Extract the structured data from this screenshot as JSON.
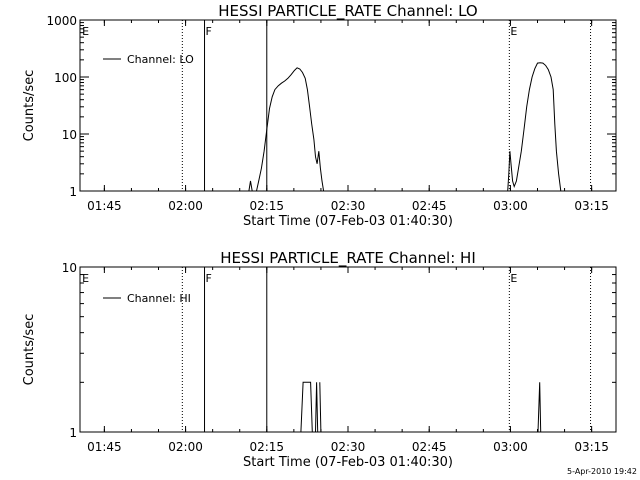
{
  "chart_data": [
    {
      "type": "line",
      "title": "HESSI PARTICLE_RATE Channel: LO",
      "xlabel": "Start Time (07-Feb-03 01:40:30)",
      "ylabel": "Counts/sec",
      "yscale": "log",
      "ylim": [
        1,
        1000
      ],
      "y_ticks": [
        {
          "value": 1,
          "label": "1"
        },
        {
          "value": 10,
          "label": "10"
        },
        {
          "value": 100,
          "label": "100"
        },
        {
          "value": 1000,
          "label": "1000"
        }
      ],
      "x_unit": "minutes since 01:40:30",
      "xlim": [
        0,
        99
      ],
      "x_ticks": [
        {
          "value": 4.5,
          "label": "01:45"
        },
        {
          "value": 19.5,
          "label": "02:00"
        },
        {
          "value": 34.5,
          "label": "02:15"
        },
        {
          "value": 49.5,
          "label": "02:30"
        },
        {
          "value": 64.5,
          "label": "02:45"
        },
        {
          "value": 79.5,
          "label": "03:00"
        },
        {
          "value": 94.5,
          "label": "03:15"
        }
      ],
      "legend": {
        "entries": [
          "Channel: LO"
        ],
        "position": "top-left"
      },
      "markers": [
        {
          "x": 0.2,
          "label": "E",
          "style": "none"
        },
        {
          "x": 18.9,
          "label": "",
          "style": "dotted"
        },
        {
          "x": 23.0,
          "label": "F",
          "style": "solid"
        },
        {
          "x": 34.5,
          "label": "",
          "style": "solid"
        },
        {
          "x": 79.3,
          "label": "E",
          "style": "dotted"
        },
        {
          "x": 94.3,
          "label": "",
          "style": "dotted"
        }
      ],
      "series": [
        {
          "name": "Channel: LO",
          "segments": [
            [
              [
                31.2,
                1
              ],
              [
                31.5,
                1.5
              ],
              [
                31.8,
                1
              ]
            ],
            [
              [
                32.6,
                1
              ],
              [
                33.0,
                1.5
              ],
              [
                33.5,
                2.5
              ],
              [
                34.0,
                5
              ],
              [
                34.5,
                12
              ],
              [
                35.0,
                28
              ],
              [
                35.5,
                45
              ],
              [
                36.0,
                60
              ],
              [
                36.6,
                70
              ],
              [
                37.2,
                78
              ],
              [
                37.8,
                85
              ],
              [
                38.4,
                95
              ],
              [
                39.0,
                110
              ],
              [
                39.6,
                130
              ],
              [
                40.1,
                145
              ],
              [
                40.6,
                138
              ],
              [
                41.1,
                120
              ],
              [
                41.6,
                95
              ],
              [
                42.0,
                60
              ],
              [
                42.4,
                30
              ],
              [
                42.8,
                15
              ],
              [
                43.2,
                8
              ],
              [
                43.5,
                4
              ],
              [
                43.8,
                3
              ],
              [
                44.1,
                5
              ],
              [
                44.4,
                2.5
              ],
              [
                44.7,
                1.5
              ],
              [
                45.0,
                1
              ]
            ],
            [
              [
                79.0,
                1
              ],
              [
                79.2,
                2
              ],
              [
                79.4,
                5
              ],
              [
                79.6,
                3
              ],
              [
                79.9,
                1.5
              ],
              [
                80.2,
                1.2
              ],
              [
                80.6,
                1.5
              ],
              [
                81.0,
                2.5
              ],
              [
                81.5,
                5
              ],
              [
                82.0,
                12
              ],
              [
                82.5,
                30
              ],
              [
                83.0,
                60
              ],
              [
                83.5,
                100
              ],
              [
                84.0,
                140
              ],
              [
                84.5,
                175
              ],
              [
                85.0,
                178
              ],
              [
                85.5,
                175
              ],
              [
                86.0,
                160
              ],
              [
                86.5,
                135
              ],
              [
                87.0,
                100
              ],
              [
                87.4,
                60
              ],
              [
                87.7,
                15
              ],
              [
                88.0,
                5
              ],
              [
                88.4,
                2
              ],
              [
                88.8,
                1
              ]
            ]
          ]
        }
      ]
    },
    {
      "type": "line",
      "title": "HESSI PARTICLE_RATE Channel: HI",
      "xlabel": "Start Time (07-Feb-03 01:40:30)",
      "ylabel": "Counts/sec",
      "yscale": "log",
      "ylim": [
        1,
        10
      ],
      "y_ticks": [
        {
          "value": 1,
          "label": "1"
        },
        {
          "value": 10,
          "label": "10"
        }
      ],
      "x_unit": "minutes since 01:40:30",
      "xlim": [
        0,
        99
      ],
      "x_ticks": [
        {
          "value": 4.5,
          "label": "01:45"
        },
        {
          "value": 19.5,
          "label": "02:00"
        },
        {
          "value": 34.5,
          "label": "02:15"
        },
        {
          "value": 49.5,
          "label": "02:30"
        },
        {
          "value": 64.5,
          "label": "02:45"
        },
        {
          "value": 79.5,
          "label": "03:00"
        },
        {
          "value": 94.5,
          "label": "03:15"
        }
      ],
      "legend": {
        "entries": [
          "Channel: HI"
        ],
        "position": "top-left"
      },
      "markers": [
        {
          "x": 0.2,
          "label": "E",
          "style": "none"
        },
        {
          "x": 18.9,
          "label": "",
          "style": "dotted"
        },
        {
          "x": 23.0,
          "label": "F",
          "style": "solid"
        },
        {
          "x": 34.5,
          "label": "",
          "style": "solid"
        },
        {
          "x": 79.3,
          "label": "E",
          "style": "dotted"
        },
        {
          "x": 94.3,
          "label": "",
          "style": "dotted"
        }
      ],
      "series": [
        {
          "name": "Channel: HI",
          "segments": [
            [
              [
                40.8,
                1
              ],
              [
                41.2,
                2
              ],
              [
                42.6,
                2
              ],
              [
                42.9,
                1
              ]
            ],
            [
              [
                43.5,
                1
              ],
              [
                43.7,
                2
              ],
              [
                43.9,
                1
              ]
            ],
            [
              [
                44.3,
                2
              ],
              [
                44.5,
                1
              ]
            ],
            [
              [
                84.6,
                1
              ],
              [
                84.9,
                2
              ],
              [
                85.1,
                1
              ]
            ]
          ]
        }
      ]
    }
  ],
  "footer": {
    "date_stamp": "5-Apr-2010 19:42"
  }
}
